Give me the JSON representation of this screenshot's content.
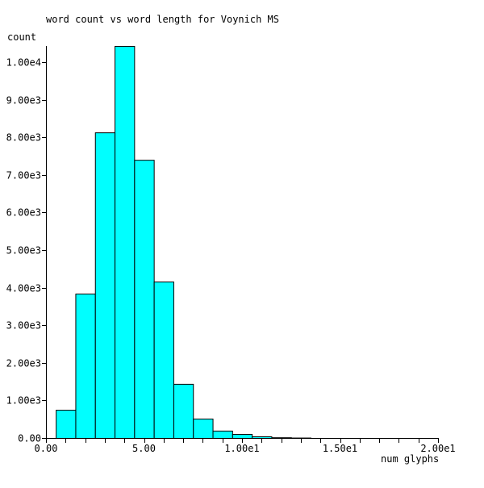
{
  "chart_data": {
    "type": "bar",
    "title": "word count vs word length for Voynich MS",
    "xlabel": "num glyphs",
    "ylabel": "count",
    "xlim": [
      0,
      20
    ],
    "ylim": [
      0,
      10000
    ],
    "x_tick_labels": [
      {
        "value": 0,
        "label": "0.00"
      },
      {
        "value": 5,
        "label": "5.00"
      },
      {
        "value": 10,
        "label": "1.00e1"
      },
      {
        "value": 15,
        "label": "1.50e1"
      },
      {
        "value": 20,
        "label": "2.00e1"
      }
    ],
    "x_minor_tick_step": 1,
    "y_tick_labels": [
      {
        "value": 0,
        "label": "0.00"
      },
      {
        "value": 1000,
        "label": "1.00e3"
      },
      {
        "value": 2000,
        "label": "2.00e3"
      },
      {
        "value": 3000,
        "label": "3.00e3"
      },
      {
        "value": 4000,
        "label": "4.00e3"
      },
      {
        "value": 5000,
        "label": "5.00e3"
      },
      {
        "value": 6000,
        "label": "6.00e3"
      },
      {
        "value": 7000,
        "label": "7.00e3"
      },
      {
        "value": 8000,
        "label": "8.00e3"
      },
      {
        "value": 9000,
        "label": "9.00e3"
      },
      {
        "value": 10000,
        "label": "1.00e4"
      }
    ],
    "bar_width": 1,
    "x": [
      1,
      2,
      3,
      4,
      5,
      6,
      7,
      8,
      9,
      10,
      11,
      12,
      13
    ],
    "values": [
      750,
      3840,
      8130,
      10430,
      7400,
      4160,
      1440,
      515,
      195,
      107,
      43,
      18,
      10
    ],
    "bar_color": "#00ffff",
    "edge_color": "#000000",
    "grid": false,
    "legend": "none"
  }
}
